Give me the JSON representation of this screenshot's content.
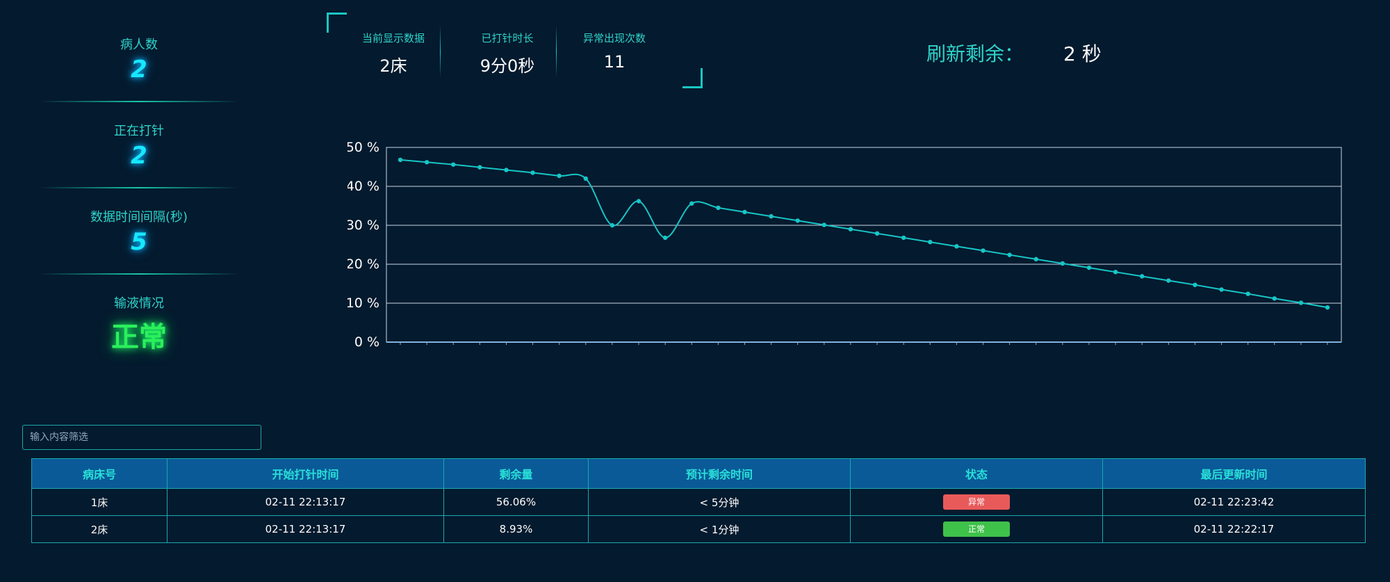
{
  "left_panel": {
    "patients": {
      "label": "病人数",
      "value": "2"
    },
    "infusing": {
      "label": "正在打针",
      "value": "2"
    },
    "interval": {
      "label": "数据时间间隔(秒)",
      "value": "5"
    },
    "infusion_status": {
      "label": "输液情况",
      "value": "正常",
      "color": "#2bf05b"
    }
  },
  "top_info": {
    "current": {
      "label": "当前显示数据",
      "value": "2床"
    },
    "duration": {
      "label": "已打针时长",
      "value": "9分0秒"
    },
    "anomalies": {
      "label": "异常出现次数",
      "value": "11"
    }
  },
  "refresh": {
    "label": "刷新剩余：",
    "value": "2 秒"
  },
  "chart_data": {
    "type": "line",
    "title": "",
    "xlabel": "",
    "ylabel": "",
    "ylim": [
      0,
      50
    ],
    "yticks": [
      "0 %",
      "10 %",
      "20 %",
      "30 %",
      "40 %",
      "50 %"
    ],
    "grid": true,
    "color": "#17c6c6",
    "values": [
      46.8,
      46.2,
      45.6,
      44.9,
      44.2,
      43.5,
      42.7,
      42.0,
      30.0,
      36.2,
      26.8,
      35.6,
      34.5,
      33.4,
      32.3,
      31.2,
      30.1,
      29.0,
      27.9,
      26.8,
      25.7,
      24.6,
      23.5,
      22.4,
      21.3,
      20.2,
      19.1,
      18.0,
      16.9,
      15.8,
      14.7,
      13.5,
      12.4,
      11.2,
      10.1,
      8.9
    ]
  },
  "filter": {
    "placeholder": "输入内容筛选"
  },
  "table": {
    "headers": [
      "病床号",
      "开始打针时间",
      "剩余量",
      "预计剩余时间",
      "状态",
      "最后更新时间"
    ],
    "rows": [
      {
        "bed": "1床",
        "start": "02-11 22:13:17",
        "remaining": "56.06%",
        "eta": "< 5分钟",
        "status": "异常",
        "status_color": "#e85a5a",
        "updated": "02-11 22:23:42"
      },
      {
        "bed": "2床",
        "start": "02-11 22:13:17",
        "remaining": "8.93%",
        "eta": "< 1分钟",
        "status": "正常",
        "status_color": "#3fc24a",
        "updated": "02-11 22:22:17"
      }
    ]
  }
}
